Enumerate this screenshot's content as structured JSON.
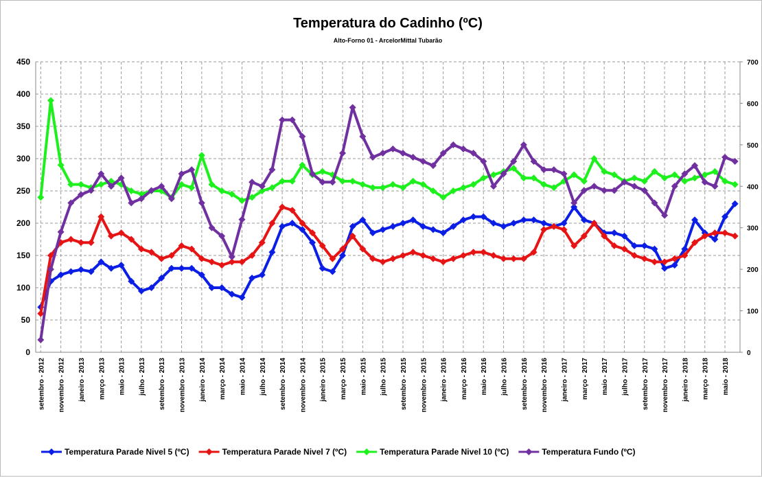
{
  "chart_data": {
    "type": "line",
    "title": "Temperatura do Cadinho (ºC)",
    "subtitle": "Alto-Forno 01 - ArcelorMittal Tubarão",
    "categories": [
      "setembro - 2012",
      null,
      "novembro - 2012",
      null,
      "janeiro - 2013",
      null,
      "março - 2013",
      null,
      "maio - 2013",
      null,
      "julho - 2013",
      null,
      "setembro - 2013",
      null,
      "novembro - 2013",
      null,
      "janeiro - 2014",
      null,
      "março - 2014",
      null,
      "maio - 2014",
      null,
      "julho - 2014",
      null,
      "setembro - 2014",
      null,
      "novembro - 2014",
      null,
      "janeiro - 2015",
      null,
      "março - 2015",
      null,
      "maio - 2015",
      null,
      "julho - 2015",
      null,
      "setembro - 2015",
      null,
      "novembro - 2015",
      null,
      "janeiro - 2016",
      null,
      "março - 2016",
      null,
      "maio - 2016",
      null,
      "julho - 2016",
      null,
      "setembro - 2016",
      null,
      "novembro - 2016",
      null,
      "janeiro - 2017",
      null,
      "março - 2017",
      null,
      "maio - 2017",
      null,
      "julho - 2017",
      null,
      "setembro - 2017",
      null,
      "novembro - 2017",
      null,
      "janeiro - 2018",
      null,
      "março - 2018",
      null,
      "maio - 2018",
      null
    ],
    "series": [
      {
        "name": "Temperatura Parade Nivel 5 (ºC)",
        "color": "#0a1ee6",
        "values": [
          70,
          110,
          120,
          125,
          128,
          125,
          140,
          130,
          135,
          110,
          95,
          100,
          115,
          130,
          130,
          130,
          120,
          100,
          100,
          90,
          85,
          115,
          120,
          155,
          195,
          200,
          190,
          170,
          130,
          125,
          150,
          195,
          205,
          185,
          190,
          195,
          200,
          205,
          195,
          190,
          185,
          195,
          205,
          210,
          210,
          200,
          195,
          200,
          205,
          205,
          200,
          195,
          200,
          225,
          205,
          200,
          185,
          185,
          180,
          165,
          165,
          160,
          130,
          135,
          160,
          205,
          185,
          175,
          210,
          230
        ]
      },
      {
        "name": "Temperatura Parade Nivel 7 (ºC)",
        "color": "#e61414",
        "values": [
          60,
          150,
          170,
          175,
          170,
          170,
          210,
          180,
          185,
          175,
          160,
          155,
          145,
          150,
          165,
          160,
          145,
          140,
          135,
          140,
          140,
          150,
          170,
          200,
          225,
          220,
          200,
          185,
          165,
          145,
          160,
          180,
          160,
          145,
          140,
          145,
          150,
          155,
          150,
          145,
          140,
          145,
          150,
          155,
          155,
          150,
          145,
          145,
          145,
          155,
          190,
          195,
          190,
          165,
          180,
          200,
          180,
          165,
          160,
          150,
          145,
          140,
          140,
          145,
          150,
          170,
          180,
          185,
          185,
          180
        ]
      },
      {
        "name": "Temperatura Parade Nivel 10 (ºC)",
        "color": "#1ef01e",
        "values": [
          240,
          390,
          290,
          260,
          260,
          255,
          260,
          265,
          260,
          250,
          245,
          250,
          250,
          240,
          260,
          255,
          305,
          260,
          250,
          245,
          235,
          240,
          250,
          255,
          265,
          265,
          290,
          275,
          280,
          275,
          265,
          265,
          260,
          255,
          255,
          260,
          255,
          265,
          260,
          250,
          240,
          250,
          255,
          260,
          270,
          275,
          280,
          285,
          270,
          270,
          260,
          255,
          265,
          275,
          265,
          300,
          280,
          275,
          265,
          270,
          265,
          280,
          270,
          275,
          265,
          270,
          275,
          280,
          265,
          260
        ]
      },
      {
        "name": "Temperatura Fundo (ºC)",
        "color": "#7030a0",
        "axis": "y2",
        "values": [
          30,
          200,
          290,
          360,
          380,
          390,
          430,
          400,
          420,
          360,
          370,
          390,
          400,
          370,
          430,
          440,
          360,
          300,
          280,
          230,
          320,
          410,
          400,
          440,
          560,
          560,
          520,
          430,
          410,
          410,
          480,
          590,
          520,
          470,
          480,
          490,
          480,
          470,
          460,
          450,
          480,
          500,
          490,
          480,
          460,
          400,
          430,
          460,
          500,
          460,
          440,
          440,
          430,
          360,
          390,
          400,
          390,
          390,
          410,
          400,
          390,
          360,
          330,
          400,
          430,
          450,
          410,
          400,
          470,
          460
        ]
      }
    ],
    "ylim": [
      0,
      450
    ],
    "yticks": [
      0,
      50,
      100,
      150,
      200,
      250,
      300,
      350,
      400,
      450
    ],
    "y2lim": [
      0,
      700
    ],
    "y2ticks": [
      0,
      100,
      200,
      300,
      400,
      500,
      600,
      700
    ],
    "grid": true,
    "legend": "bottom"
  }
}
